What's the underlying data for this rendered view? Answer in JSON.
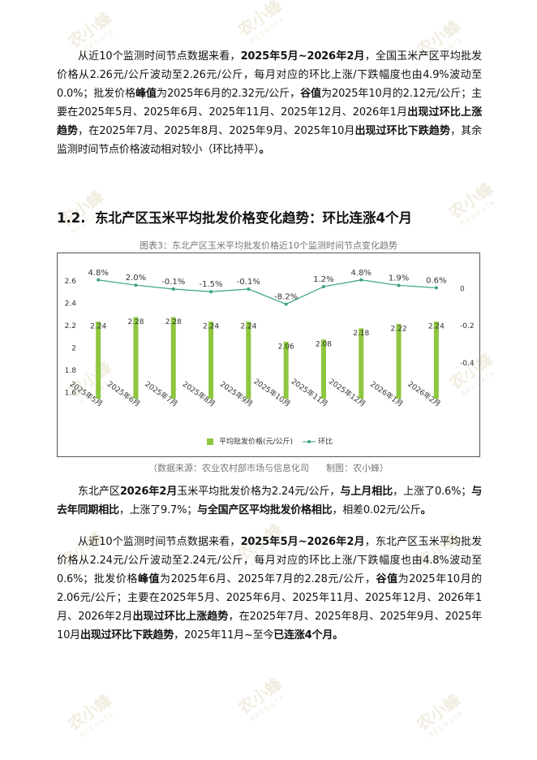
{
  "watermark": {
    "name": "农小蜂",
    "en": "BEEDATA"
  },
  "paragraphs_top": [
    {
      "runs": [
        {
          "text": "从近10个监测时间节点数据来看，"
        },
        {
          "text": "2025年5月~2026年2月",
          "bold": true
        },
        {
          "text": "，全国玉米产区平均批发价格从2.26元/公斤波动至2.26元/公斤，每月对应的环比上涨/下跌幅度也由4.9%波动至0.0%；批发价格"
        },
        {
          "text": "峰值",
          "bold": true
        },
        {
          "text": "为2025年6月的2.32元/公斤，"
        },
        {
          "text": "谷值",
          "bold": true
        },
        {
          "text": "为2025年10月的2.12元/公斤；主要在2025年5月、2025年6月、2025年11月、2025年12月、2026年1月"
        },
        {
          "text": "出现过环比上涨趋势",
          "bold": true
        },
        {
          "text": "，在2025年7月、2025年8月、2025年9月、2025年10月"
        },
        {
          "text": "出现过环比下跌趋势",
          "bold": true
        },
        {
          "text": "，其余监测时间节点价格波动相对较小（环比持平）"
        },
        {
          "text": "。",
          "bold": true
        }
      ]
    }
  ],
  "heading": "1.2.  东北产区玉米平均批发价格变化趋势：环比连涨4个月",
  "chart_data": {
    "type": "bar_line",
    "title": "图表3：东北产区玉米平均批发价格近10个监测时间节点变化趋势",
    "categories": [
      "2025年5月",
      "2025年6月",
      "2025年7月",
      "2025年8月",
      "2025年9月",
      "2025年10月",
      "2025年11月",
      "2025年12月",
      "2026年1月",
      "2026年2月"
    ],
    "series": [
      {
        "name": "平均批发价格(元/公斤)",
        "type": "bar",
        "color": "#8dc63f",
        "values": [
          2.24,
          2.28,
          2.28,
          2.24,
          2.24,
          2.06,
          2.08,
          2.18,
          2.22,
          2.24
        ]
      },
      {
        "name": "环比",
        "type": "line",
        "axis": "y2",
        "color": "#3aa57a",
        "values": [
          0.048,
          0.02,
          -0.001,
          -0.015,
          -0.001,
          -0.082,
          0.012,
          0.048,
          0.019,
          0.006
        ],
        "value_labels": [
          "4.8%",
          "2.0%",
          "-0.1%",
          "-1.5%",
          "-0.1%",
          "-8.2%",
          "1.2%",
          "4.8%",
          "1.9%",
          "0.6%"
        ]
      }
    ],
    "ylim": [
      1.55,
      2.75
    ],
    "yticks": [
      1.6,
      1.8,
      2,
      2.2,
      2.4,
      2.6
    ],
    "y2lim": [
      -0.59,
      0.13
    ],
    "y2ticks": [
      0,
      -0.2,
      -0.4
    ],
    "grid": false,
    "legend": "bottom"
  },
  "source": "（数据来源：农业农村部市场与信息化司      制图：农小蜂）",
  "paragraphs": [
    {
      "runs": [
        {
          "text": "东北产区"
        },
        {
          "text": "2026年2月",
          "bold": true
        },
        {
          "text": "玉米平均批发价格为2.24元/公斤，"
        },
        {
          "text": "与上月相比",
          "bold": true
        },
        {
          "text": "，上涨了0.6%；"
        },
        {
          "text": "与去年同期相比",
          "bold": true
        },
        {
          "text": "，上涨了9.7%；"
        },
        {
          "text": "与全国产区平均批发价格相比",
          "bold": true
        },
        {
          "text": "，相差0.02元/公斤"
        },
        {
          "text": "。",
          "bold": true
        }
      ]
    },
    {
      "runs": [
        {
          "text": "从近10个监测时间节点数据来看，"
        },
        {
          "text": "2025年5月~2026年2月",
          "bold": true
        },
        {
          "text": "，东北产区玉米平均批发价格从2.24元/公斤波动至2.24元/公斤，每月对应的环比上涨/下跌幅度也由4.8%波动至0.6%；批发价格"
        },
        {
          "text": "峰值",
          "bold": true
        },
        {
          "text": "为2025年6月、2025年7月的2.28元/公斤，"
        },
        {
          "text": "谷值",
          "bold": true
        },
        {
          "text": "为2025年10月的2.06元/公斤；主要在2025年5月、2025年6月、2025年11月、2025年12月、2026年1月、2026年2月"
        },
        {
          "text": "出现过环比上涨趋势",
          "bold": true
        },
        {
          "text": "，在2025年7月、2025年8月、2025年9月、2025年10月"
        },
        {
          "text": "出现过环比下跌趋势",
          "bold": true
        },
        {
          "text": "，2025年11月~至今"
        },
        {
          "text": "已连涨4个月。",
          "bold": true
        }
      ]
    }
  ]
}
